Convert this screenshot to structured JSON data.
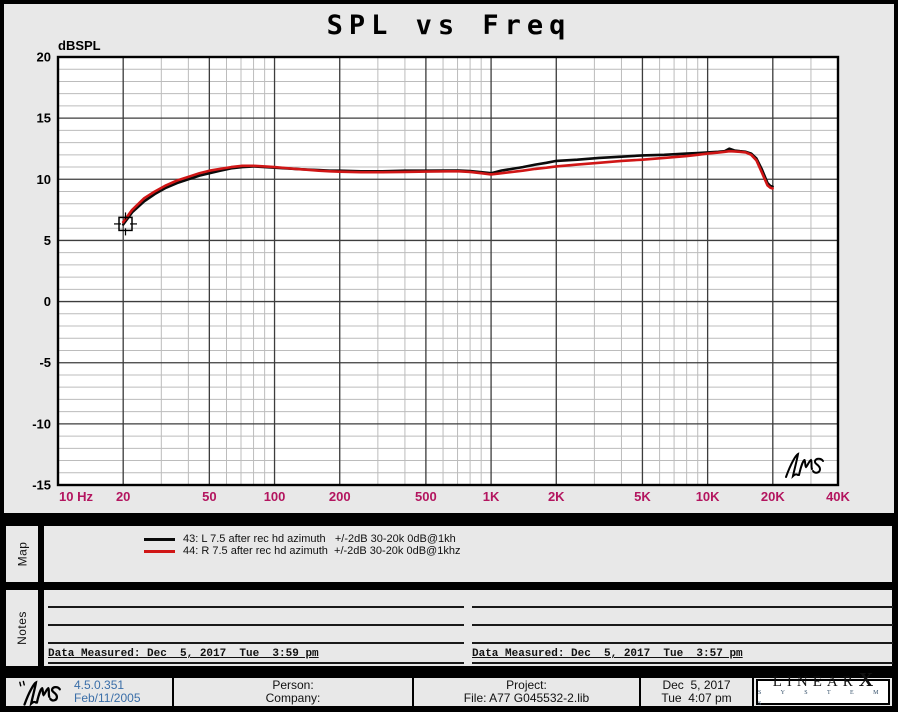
{
  "window": {
    "title": "SPL vs Freq"
  },
  "colors": {
    "panel_bg": "#e8e8e8",
    "plot_bg": "#ffffff",
    "grid_minor": "#bcbcbc",
    "grid_major": "#3d3d3d",
    "axis_tick_magenta": "#b3155f",
    "axis_tick_black": "#000000",
    "series_black": "#0a0a0a",
    "series_red": "#d01616",
    "version_blue": "#3a6ea8"
  },
  "chart_data": {
    "type": "line",
    "title": "SPL vs Freq",
    "ylabel": "dBSPL",
    "x_scale": "log",
    "xlim": [
      10,
      40000
    ],
    "ylim": [
      -15,
      20
    ],
    "grid": true,
    "x_tick_values": [
      10,
      20,
      50,
      100,
      200,
      500,
      1000,
      2000,
      5000,
      10000,
      20000,
      40000
    ],
    "x_tick_labels": [
      "10 Hz",
      "20",
      "50",
      "100",
      "200",
      "500",
      "1K",
      "2K",
      "5K",
      "10K",
      "20K",
      "40K"
    ],
    "x_major_values": [
      20,
      50,
      100,
      200,
      500,
      1000,
      2000,
      5000,
      10000,
      20000
    ],
    "y_tick_values": [
      20,
      15,
      10,
      5,
      0,
      -5,
      -10,
      -15
    ],
    "y_major_step": 5,
    "y_minor_step": 1,
    "cursor_marker": {
      "freq": 20.5,
      "db": 6.35
    },
    "series": [
      {
        "name": "43: L 7.5 after rec hd azimuth   +/-2dB 30-20k 0dB@1kh",
        "color": "#0a0a0a",
        "points": [
          [
            20,
            6.3
          ],
          [
            22,
            7.3
          ],
          [
            25,
            8.2
          ],
          [
            28,
            8.8
          ],
          [
            31.5,
            9.3
          ],
          [
            35.5,
            9.7
          ],
          [
            40,
            10.0
          ],
          [
            45,
            10.3
          ],
          [
            50,
            10.5
          ],
          [
            56,
            10.7
          ],
          [
            63,
            10.9
          ],
          [
            71,
            11.0
          ],
          [
            80,
            11.05
          ],
          [
            90,
            11.0
          ],
          [
            100,
            10.95
          ],
          [
            112,
            10.9
          ],
          [
            125,
            10.85
          ],
          [
            140,
            10.8
          ],
          [
            160,
            10.75
          ],
          [
            180,
            10.7
          ],
          [
            200,
            10.7
          ],
          [
            250,
            10.65
          ],
          [
            315,
            10.65
          ],
          [
            400,
            10.7
          ],
          [
            500,
            10.7
          ],
          [
            630,
            10.72
          ],
          [
            710,
            10.72
          ],
          [
            800,
            10.68
          ],
          [
            900,
            10.58
          ],
          [
            1000,
            10.5
          ],
          [
            1120,
            10.72
          ],
          [
            1250,
            10.85
          ],
          [
            1400,
            11.0
          ],
          [
            1600,
            11.2
          ],
          [
            1800,
            11.35
          ],
          [
            2000,
            11.5
          ],
          [
            2500,
            11.6
          ],
          [
            3150,
            11.75
          ],
          [
            4000,
            11.85
          ],
          [
            5000,
            11.95
          ],
          [
            6300,
            12.0
          ],
          [
            8000,
            12.1
          ],
          [
            9000,
            12.15
          ],
          [
            10000,
            12.2
          ],
          [
            11200,
            12.25
          ],
          [
            12000,
            12.3
          ],
          [
            12600,
            12.5
          ],
          [
            13300,
            12.35
          ],
          [
            14100,
            12.3
          ],
          [
            15000,
            12.25
          ],
          [
            15900,
            12.1
          ],
          [
            16800,
            11.7
          ],
          [
            17800,
            10.8
          ],
          [
            18900,
            9.7
          ],
          [
            19500,
            9.45
          ],
          [
            19950,
            9.4
          ]
        ]
      },
      {
        "name": "44: R 7.5 after rec hd azimuth  +/-2dB 30-20k 0dB@1khz",
        "color": "#d01616",
        "points": [
          [
            20,
            6.5
          ],
          [
            22,
            7.5
          ],
          [
            25,
            8.45
          ],
          [
            28,
            9.0
          ],
          [
            31.5,
            9.5
          ],
          [
            35.5,
            9.9
          ],
          [
            40,
            10.2
          ],
          [
            45,
            10.5
          ],
          [
            50,
            10.7
          ],
          [
            56,
            10.85
          ],
          [
            63,
            11.0
          ],
          [
            71,
            11.1
          ],
          [
            80,
            11.1
          ],
          [
            90,
            11.05
          ],
          [
            100,
            11.0
          ],
          [
            112,
            10.92
          ],
          [
            125,
            10.85
          ],
          [
            140,
            10.78
          ],
          [
            160,
            10.7
          ],
          [
            180,
            10.65
          ],
          [
            200,
            10.62
          ],
          [
            250,
            10.58
          ],
          [
            315,
            10.58
          ],
          [
            400,
            10.6
          ],
          [
            500,
            10.63
          ],
          [
            630,
            10.65
          ],
          [
            710,
            10.65
          ],
          [
            800,
            10.6
          ],
          [
            900,
            10.5
          ],
          [
            1000,
            10.4
          ],
          [
            1120,
            10.5
          ],
          [
            1250,
            10.6
          ],
          [
            1400,
            10.7
          ],
          [
            1600,
            10.85
          ],
          [
            1800,
            10.95
          ],
          [
            2000,
            11.05
          ],
          [
            2500,
            11.2
          ],
          [
            3150,
            11.35
          ],
          [
            4000,
            11.5
          ],
          [
            5000,
            11.6
          ],
          [
            6300,
            11.75
          ],
          [
            8000,
            11.9
          ],
          [
            9000,
            12.0
          ],
          [
            10000,
            12.1
          ],
          [
            11200,
            12.18
          ],
          [
            12000,
            12.25
          ],
          [
            12600,
            12.3
          ],
          [
            13300,
            12.28
          ],
          [
            14100,
            12.25
          ],
          [
            15000,
            12.2
          ],
          [
            15900,
            12.0
          ],
          [
            16800,
            11.55
          ],
          [
            17800,
            10.55
          ],
          [
            18900,
            9.5
          ],
          [
            19500,
            9.3
          ],
          [
            19950,
            9.25
          ]
        ]
      }
    ]
  },
  "map_section": {
    "label": "Map",
    "items": [
      {
        "label": "43: L 7.5 after rec hd azimuth   +/-2dB 30-20k 0dB@1kh",
        "color": "#0a0a0a"
      },
      {
        "label": "44: R 7.5 after rec hd azimuth  +/-2dB 30-20k 0dB@1khz",
        "color": "#d01616"
      }
    ]
  },
  "notes_section": {
    "label": "Notes",
    "left_measured": "Data Measured: Dec  5, 2017  Tue  3:59 pm",
    "right_measured": "Data Measured: Dec  5, 2017  Tue  3:57 pm"
  },
  "footer": {
    "version": "4.5.0.351",
    "version_date": "Feb/11/2005",
    "person_label": "Person:",
    "company_label": "Company:",
    "project_label": "Project:",
    "file_label": "File: A77 G045532-2.lib",
    "date_line": "Dec  5, 2017",
    "time_line": "Tue  4:07 pm",
    "brand_main": "LINEAR",
    "brand_x": "X",
    "brand_sub": "S Y S T E M S"
  }
}
